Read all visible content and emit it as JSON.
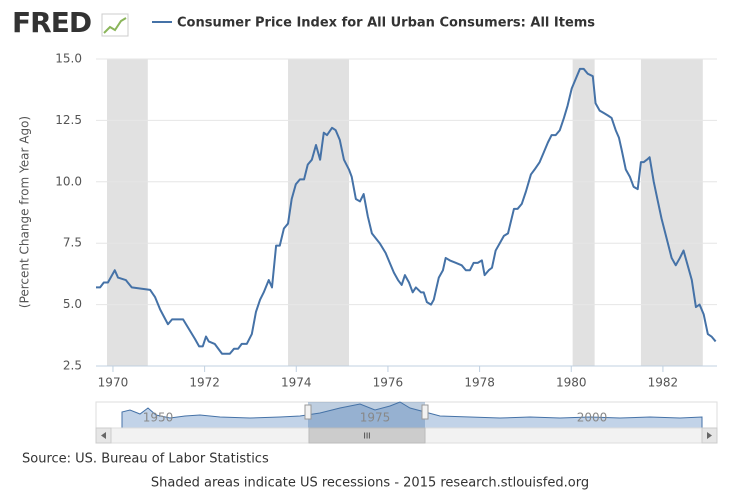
{
  "logo": "FRED",
  "chart_data": {
    "type": "line",
    "y_label": "(Percent Change from Year Ago)",
    "series": [
      {
        "name": "Consumer Price Index for All Urban Consumers: All Items",
        "color": "#4572a7",
        "x": [
          1969.63,
          1969.72,
          1969.8,
          1969.89,
          1969.98,
          1970.04,
          1970.11,
          1970.28,
          1970.41,
          1970.81,
          1970.92,
          1971.03,
          1971.2,
          1971.29,
          1971.53,
          1971.79,
          1971.88,
          1971.96,
          1972.03,
          1972.09,
          1972.22,
          1972.38,
          1972.55,
          1972.64,
          1972.73,
          1972.81,
          1972.92,
          1973.03,
          1973.12,
          1973.21,
          1973.29,
          1973.4,
          1973.47,
          1973.56,
          1973.64,
          1973.73,
          1973.82,
          1973.9,
          1973.99,
          1974.08,
          1974.17,
          1974.25,
          1974.34,
          1974.43,
          1974.52,
          1974.6,
          1974.67,
          1974.78,
          1974.86,
          1974.95,
          1975.04,
          1975.15,
          1975.21,
          1975.3,
          1975.39,
          1975.47,
          1975.56,
          1975.65,
          1975.82,
          1975.95,
          1976.04,
          1976.13,
          1976.22,
          1976.3,
          1976.37,
          1976.46,
          1976.54,
          1976.61,
          1976.72,
          1976.78,
          1976.85,
          1976.94,
          1977.0,
          1977.11,
          1977.2,
          1977.26,
          1977.35,
          1977.48,
          1977.61,
          1977.7,
          1977.79,
          1977.87,
          1977.96,
          1978.05,
          1978.11,
          1978.2,
          1978.27,
          1978.35,
          1978.44,
          1978.53,
          1978.62,
          1978.75,
          1978.83,
          1978.92,
          1979.01,
          1979.12,
          1979.2,
          1979.31,
          1979.4,
          1979.49,
          1979.57,
          1979.66,
          1979.75,
          1979.84,
          1979.92,
          1980.01,
          1980.1,
          1980.19,
          1980.27,
          1980.36,
          1980.47,
          1980.53,
          1980.62,
          1980.71,
          1980.8,
          1980.88,
          1980.97,
          1981.04,
          1981.1,
          1981.19,
          1981.28,
          1981.36,
          1981.45,
          1981.52,
          1981.58,
          1981.65,
          1981.71,
          1981.8,
          1981.89,
          1981.97,
          1982.08,
          1982.19,
          1982.28,
          1982.37,
          1982.45,
          1982.54,
          1982.63,
          1982.72,
          1982.8,
          1982.89,
          1982.98,
          1983.06,
          1983.15
        ],
        "values": [
          5.7,
          5.7,
          5.9,
          5.9,
          6.2,
          6.4,
          6.1,
          6.0,
          5.7,
          5.6,
          5.3,
          4.8,
          4.2,
          4.4,
          4.4,
          3.6,
          3.3,
          3.3,
          3.7,
          3.5,
          3.4,
          3.0,
          3.0,
          3.2,
          3.2,
          3.4,
          3.4,
          3.8,
          4.7,
          5.2,
          5.5,
          6.0,
          5.7,
          7.4,
          7.4,
          8.1,
          8.3,
          9.3,
          9.9,
          10.1,
          10.1,
          10.7,
          10.9,
          11.5,
          10.9,
          12.0,
          11.9,
          12.2,
          12.1,
          11.7,
          10.9,
          10.5,
          10.2,
          9.3,
          9.2,
          9.5,
          8.6,
          7.9,
          7.5,
          7.1,
          6.7,
          6.3,
          6.0,
          5.8,
          6.2,
          5.9,
          5.5,
          5.7,
          5.5,
          5.5,
          5.1,
          5.0,
          5.2,
          6.1,
          6.4,
          6.9,
          6.8,
          6.7,
          6.6,
          6.4,
          6.4,
          6.7,
          6.7,
          6.8,
          6.2,
          6.4,
          6.5,
          7.2,
          7.5,
          7.8,
          7.9,
          8.9,
          8.9,
          9.1,
          9.6,
          10.3,
          10.5,
          10.8,
          11.2,
          11.6,
          11.9,
          11.9,
          12.1,
          12.6,
          13.1,
          13.8,
          14.2,
          14.6,
          14.6,
          14.4,
          14.3,
          13.2,
          12.9,
          12.8,
          12.7,
          12.6,
          12.1,
          11.8,
          11.3,
          10.5,
          10.2,
          9.8,
          9.7,
          10.8,
          10.8,
          10.9,
          11.0,
          10.0,
          9.2,
          8.5,
          7.7,
          6.9,
          6.6,
          6.9,
          7.2,
          6.6,
          6.0,
          4.9,
          5.0,
          4.6,
          3.8,
          3.7,
          3.5
        ]
      }
    ],
    "recessions": [
      [
        1969.87,
        1970.76
      ],
      [
        1973.82,
        1975.15
      ],
      [
        1980.03,
        1980.51
      ],
      [
        1981.52,
        1982.87
      ]
    ],
    "recession_color": "#e1e1e1",
    "xlim": [
      1969.63,
      1983.18
    ],
    "xticks": [
      1970,
      1972,
      1974,
      1976,
      1978,
      1980,
      1982
    ],
    "ylim": [
      2.5,
      15
    ],
    "yticks": [
      2.5,
      {
        "value": 5,
        "label": "5.0"
      },
      7.5,
      {
        "value": 10,
        "label": "10.0"
      },
      12.5,
      {
        "value": 15,
        "label": "15.0"
      }
    ],
    "grid": true
  },
  "navigator": {
    "labels": [
      "1950",
      "1975",
      "2000"
    ],
    "handle": "III"
  },
  "source": "Source: US. Bureau of Labor Statistics",
  "footer": "Shaded areas indicate US recessions - 2015 research.stlouisfed.org"
}
